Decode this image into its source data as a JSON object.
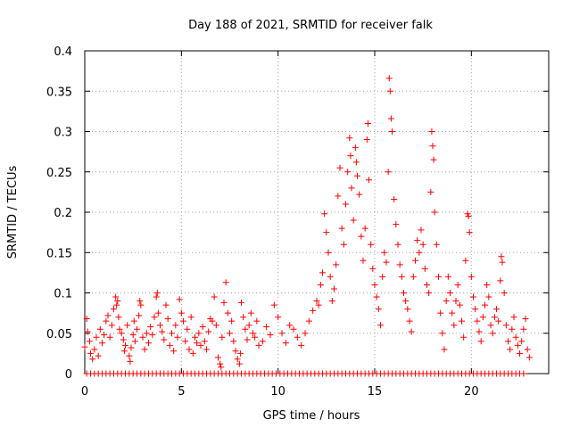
{
  "chart_data": {
    "type": "scatter",
    "title": "Day 188 of 2021, SRMTID for receiver falk",
    "xlabel": "GPS time / hours",
    "ylabel": "SRMTID / TECUs",
    "xlim": [
      0,
      24
    ],
    "ylim": [
      0,
      0.4
    ],
    "grid": true,
    "marker": "plus",
    "color": "#ff0000",
    "x_ticks": [
      0,
      5,
      10,
      15,
      20
    ],
    "x_tick_labels": [
      "0",
      "5",
      "10",
      "15",
      "20"
    ],
    "y_ticks": [
      0,
      0.05,
      0.1,
      0.15,
      0.2,
      0.25,
      0.3,
      0.35,
      0.4
    ],
    "y_tick_labels": [
      "0",
      "0.05",
      "0.1",
      "0.15",
      "0.2",
      "0.25",
      "0.3",
      "0.35",
      "0.4"
    ],
    "series": [
      {
        "name": "SRMTID",
        "points": [
          [
            0.0,
            0.033
          ],
          [
            0.1,
            0.068
          ],
          [
            0.15,
            0.052
          ],
          [
            0.25,
            0.04
          ],
          [
            0.3,
            0.025
          ],
          [
            0.4,
            0.018
          ],
          [
            0.5,
            0.03
          ],
          [
            0.6,
            0.045
          ],
          [
            0.7,
            0.022
          ],
          [
            0.8,
            0.055
          ],
          [
            0.9,
            0.038
          ],
          [
            1.0,
            0.048
          ],
          [
            1.1,
            0.065
          ],
          [
            1.2,
            0.072
          ],
          [
            1.3,
            0.045
          ],
          [
            1.4,
            0.06
          ],
          [
            1.5,
            0.08
          ],
          [
            1.6,
            0.095
          ],
          [
            1.65,
            0.085
          ],
          [
            1.7,
            0.09
          ],
          [
            1.75,
            0.07
          ],
          [
            1.8,
            0.055
          ],
          [
            1.9,
            0.05
          ],
          [
            2.0,
            0.042
          ],
          [
            2.05,
            0.028
          ],
          [
            2.1,
            0.035
          ],
          [
            2.2,
            0.06
          ],
          [
            2.3,
            0.022
          ],
          [
            2.35,
            0.015
          ],
          [
            2.4,
            0.032
          ],
          [
            2.5,
            0.048
          ],
          [
            2.55,
            0.065
          ],
          [
            2.6,
            0.04
          ],
          [
            2.7,
            0.055
          ],
          [
            2.8,
            0.072
          ],
          [
            2.85,
            0.09
          ],
          [
            2.9,
            0.085
          ],
          [
            3.0,
            0.045
          ],
          [
            3.1,
            0.03
          ],
          [
            3.2,
            0.05
          ],
          [
            3.3,
            0.038
          ],
          [
            3.4,
            0.058
          ],
          [
            3.5,
            0.048
          ],
          [
            3.6,
            0.07
          ],
          [
            3.7,
            0.095
          ],
          [
            3.75,
            0.1
          ],
          [
            3.8,
            0.075
          ],
          [
            3.9,
            0.06
          ],
          [
            4.0,
            0.052
          ],
          [
            4.1,
            0.042
          ],
          [
            4.2,
            0.085
          ],
          [
            4.3,
            0.068
          ],
          [
            4.4,
            0.035
          ],
          [
            4.5,
            0.05
          ],
          [
            4.6,
            0.028
          ],
          [
            4.7,
            0.06
          ],
          [
            4.8,
            0.045
          ],
          [
            4.9,
            0.092
          ],
          [
            5.0,
            0.075
          ],
          [
            5.1,
            0.065
          ],
          [
            5.2,
            0.04
          ],
          [
            5.3,
            0.055
          ],
          [
            5.4,
            0.03
          ],
          [
            5.5,
            0.07
          ],
          [
            5.6,
            0.025
          ],
          [
            5.7,
            0.045
          ],
          [
            5.8,
            0.038
          ],
          [
            5.9,
            0.05
          ],
          [
            6.0,
            0.035
          ],
          [
            6.1,
            0.058
          ],
          [
            6.2,
            0.04
          ],
          [
            6.3,
            0.03
          ],
          [
            6.4,
            0.052
          ],
          [
            6.5,
            0.068
          ],
          [
            6.6,
            0.065
          ],
          [
            6.7,
            0.095
          ],
          [
            6.8,
            0.06
          ],
          [
            6.9,
            0.02
          ],
          [
            7.0,
            0.012
          ],
          [
            7.05,
            0.008
          ],
          [
            7.1,
            0.045
          ],
          [
            7.2,
            0.088
          ],
          [
            7.3,
            0.113
          ],
          [
            7.4,
            0.075
          ],
          [
            7.5,
            0.05
          ],
          [
            7.6,
            0.065
          ],
          [
            7.7,
            0.04
          ],
          [
            7.8,
            0.028
          ],
          [
            7.9,
            0.018
          ],
          [
            8.0,
            0.012
          ],
          [
            8.05,
            0.025
          ],
          [
            8.1,
            0.088
          ],
          [
            8.2,
            0.07
          ],
          [
            8.3,
            0.055
          ],
          [
            8.4,
            0.042
          ],
          [
            8.5,
            0.06
          ],
          [
            8.6,
            0.075
          ],
          [
            8.7,
            0.05
          ],
          [
            8.8,
            0.045
          ],
          [
            8.9,
            0.065
          ],
          [
            9.0,
            0.035
          ],
          [
            9.2,
            0.04
          ],
          [
            9.4,
            0.058
          ],
          [
            9.6,
            0.048
          ],
          [
            9.8,
            0.085
          ],
          [
            10.0,
            0.07
          ],
          [
            10.2,
            0.05
          ],
          [
            10.4,
            0.038
          ],
          [
            10.6,
            0.06
          ],
          [
            10.8,
            0.055
          ],
          [
            11.0,
            0.045
          ],
          [
            11.2,
            0.035
          ],
          [
            11.4,
            0.05
          ],
          [
            11.6,
            0.065
          ],
          [
            11.8,
            0.078
          ],
          [
            12.0,
            0.09
          ],
          [
            12.1,
            0.085
          ],
          [
            12.2,
            0.11
          ],
          [
            12.3,
            0.125
          ],
          [
            12.4,
            0.198
          ],
          [
            12.5,
            0.175
          ],
          [
            12.6,
            0.15
          ],
          [
            12.7,
            0.12
          ],
          [
            12.8,
            0.09
          ],
          [
            12.9,
            0.105
          ],
          [
            13.0,
            0.135
          ],
          [
            13.1,
            0.22
          ],
          [
            13.2,
            0.255
          ],
          [
            13.3,
            0.18
          ],
          [
            13.4,
            0.16
          ],
          [
            13.5,
            0.21
          ],
          [
            13.6,
            0.25
          ],
          [
            13.7,
            0.292
          ],
          [
            13.75,
            0.27
          ],
          [
            13.8,
            0.23
          ],
          [
            13.9,
            0.19
          ],
          [
            14.0,
            0.28
          ],
          [
            14.05,
            0.262
          ],
          [
            14.1,
            0.245
          ],
          [
            14.2,
            0.222
          ],
          [
            14.3,
            0.17
          ],
          [
            14.4,
            0.14
          ],
          [
            14.5,
            0.18
          ],
          [
            14.6,
            0.29
          ],
          [
            14.65,
            0.31
          ],
          [
            14.7,
            0.24
          ],
          [
            14.8,
            0.16
          ],
          [
            14.9,
            0.13
          ],
          [
            15.0,
            0.11
          ],
          [
            15.1,
            0.095
          ],
          [
            15.2,
            0.08
          ],
          [
            15.3,
            0.06
          ],
          [
            15.4,
            0.12
          ],
          [
            15.5,
            0.15
          ],
          [
            15.6,
            0.138
          ],
          [
            15.7,
            0.25
          ],
          [
            15.75,
            0.366
          ],
          [
            15.8,
            0.35
          ],
          [
            15.85,
            0.316
          ],
          [
            15.9,
            0.3
          ],
          [
            16.0,
            0.216
          ],
          [
            16.1,
            0.185
          ],
          [
            16.2,
            0.16
          ],
          [
            16.3,
            0.135
          ],
          [
            16.4,
            0.12
          ],
          [
            16.5,
            0.1
          ],
          [
            16.6,
            0.09
          ],
          [
            16.7,
            0.08
          ],
          [
            16.8,
            0.065
          ],
          [
            16.9,
            0.052
          ],
          [
            17.0,
            0.12
          ],
          [
            17.1,
            0.14
          ],
          [
            17.2,
            0.165
          ],
          [
            17.3,
            0.15
          ],
          [
            17.4,
            0.178
          ],
          [
            17.5,
            0.16
          ],
          [
            17.6,
            0.13
          ],
          [
            17.7,
            0.11
          ],
          [
            17.8,
            0.1
          ],
          [
            17.9,
            0.225
          ],
          [
            17.95,
            0.3
          ],
          [
            18.0,
            0.282
          ],
          [
            18.05,
            0.265
          ],
          [
            18.1,
            0.2
          ],
          [
            18.2,
            0.16
          ],
          [
            18.3,
            0.12
          ],
          [
            18.4,
            0.075
          ],
          [
            18.5,
            0.05
          ],
          [
            18.6,
            0.03
          ],
          [
            18.7,
            0.09
          ],
          [
            18.8,
            0.12
          ],
          [
            18.9,
            0.1
          ],
          [
            19.0,
            0.075
          ],
          [
            19.1,
            0.06
          ],
          [
            19.2,
            0.09
          ],
          [
            19.3,
            0.11
          ],
          [
            19.4,
            0.085
          ],
          [
            19.5,
            0.065
          ],
          [
            19.6,
            0.045
          ],
          [
            19.7,
            0.14
          ],
          [
            19.8,
            0.198
          ],
          [
            19.85,
            0.195
          ],
          [
            19.9,
            0.175
          ],
          [
            20.0,
            0.12
          ],
          [
            20.1,
            0.095
          ],
          [
            20.2,
            0.08
          ],
          [
            20.3,
            0.065
          ],
          [
            20.4,
            0.052
          ],
          [
            20.5,
            0.04
          ],
          [
            20.6,
            0.07
          ],
          [
            20.7,
            0.085
          ],
          [
            20.8,
            0.11
          ],
          [
            20.9,
            0.095
          ],
          [
            21.0,
            0.06
          ],
          [
            21.1,
            0.05
          ],
          [
            21.2,
            0.07
          ],
          [
            21.3,
            0.08
          ],
          [
            21.4,
            0.065
          ],
          [
            21.5,
            0.115
          ],
          [
            21.55,
            0.145
          ],
          [
            21.6,
            0.138
          ],
          [
            21.7,
            0.1
          ],
          [
            21.8,
            0.06
          ],
          [
            21.9,
            0.04
          ],
          [
            22.0,
            0.03
          ],
          [
            22.1,
            0.055
          ],
          [
            22.2,
            0.07
          ],
          [
            22.3,
            0.045
          ],
          [
            22.4,
            0.035
          ],
          [
            22.5,
            0.025
          ],
          [
            22.6,
            0.04
          ],
          [
            22.7,
            0.055
          ],
          [
            22.8,
            0.068
          ],
          [
            22.9,
            0.03
          ],
          [
            23.0,
            0.02
          ]
        ],
        "zero_points_x": [
          0.1,
          0.3,
          0.5,
          0.7,
          0.9,
          1.1,
          1.3,
          1.5,
          1.7,
          1.9,
          2.1,
          2.3,
          2.5,
          2.7,
          2.9,
          3.1,
          3.3,
          3.5,
          3.7,
          3.9,
          4.1,
          4.3,
          4.5,
          4.7,
          4.9,
          5.1,
          5.3,
          5.5,
          5.7,
          5.9,
          6.1,
          6.3,
          6.5,
          6.7,
          6.9,
          7.1,
          7.3,
          7.5,
          7.7,
          7.9,
          8.1,
          8.3,
          8.5,
          8.7,
          8.9,
          9.1,
          9.3,
          9.5,
          9.7,
          9.9,
          10.1,
          10.3,
          10.5,
          10.7,
          10.9,
          11.1,
          11.3,
          11.5,
          11.7,
          11.9,
          12.1,
          12.3,
          12.5,
          12.7,
          12.9,
          13.1,
          13.3,
          13.5,
          13.7,
          13.9,
          14.1,
          14.3,
          14.5,
          14.7,
          14.9,
          15.1,
          15.3,
          15.5,
          15.7,
          15.9,
          16.1,
          16.3,
          16.5,
          16.7,
          16.9,
          17.1,
          17.3,
          17.5,
          17.7,
          17.9,
          18.1,
          18.3,
          18.5,
          18.7,
          18.9,
          19.1,
          19.3,
          19.5,
          19.7,
          19.9,
          20.1,
          20.3,
          20.5,
          20.7,
          20.9,
          21.1,
          21.3,
          21.5,
          21.7,
          21.9,
          22.1,
          22.3,
          22.5,
          22.7
        ]
      }
    ]
  }
}
